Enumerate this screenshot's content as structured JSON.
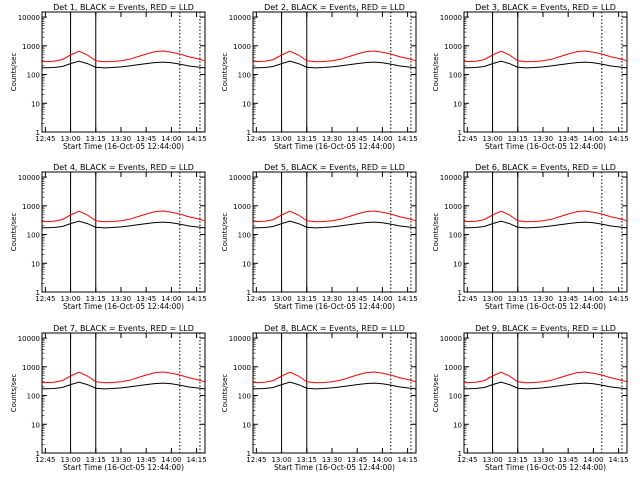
{
  "chart_data": {
    "type": "line",
    "layout": "3x3 grid of panels",
    "y_scale": "log",
    "ylim": [
      1,
      15000
    ],
    "y_ticks": [
      1,
      10,
      100,
      1000,
      10000
    ],
    "y_tick_labels": [
      "1",
      "10",
      "100",
      "1000",
      "10000"
    ],
    "xlim_minutes_after_12_43": [
      0,
      97
    ],
    "x_tick_labels": [
      "12:45",
      "13:00",
      "13:15",
      "13:30",
      "13:45",
      "14:00",
      "14:15"
    ],
    "ylabel": "Counts/sec",
    "xlabel": "Start Time (16-Oct-05 12:44:00)",
    "series_colors": {
      "events": "#000000",
      "lld": "#ff0000"
    },
    "solid_markers": [
      "13:00",
      "13:15"
    ],
    "dotted_markers": [
      "14:05",
      "14:17"
    ],
    "panels": [
      {
        "title": "Det 1, BLACK = Events, RED = LLD"
      },
      {
        "title": "Det 2, BLACK = Events, RED = LLD"
      },
      {
        "title": "Det 3, BLACK = Events, RED = LLD"
      },
      {
        "title": "Det 4, BLACK = Events, RED = LLD"
      },
      {
        "title": "Det 5, BLACK = Events, RED = LLD"
      },
      {
        "title": "Det 6, BLACK = Events, RED = LLD"
      },
      {
        "title": "Det 7, BLACK = Events, RED = LLD"
      },
      {
        "title": "Det 8, BLACK = Events, RED = LLD"
      },
      {
        "title": "Det 9, BLACK = Events, RED = LLD"
      }
    ],
    "series": [
      {
        "key": "lld",
        "x_time": [
          "12:43",
          "12:50",
          "12:55",
          "13:00",
          "13:05",
          "13:10",
          "13:15",
          "13:20",
          "13:25",
          "13:30",
          "13:35",
          "13:40",
          "13:45",
          "13:50",
          "13:55",
          "14:00",
          "14:05",
          "14:10",
          "14:15",
          "14:20"
        ],
        "values": [
          280,
          290,
          330,
          480,
          650,
          480,
          300,
          280,
          285,
          300,
          340,
          420,
          520,
          620,
          660,
          600,
          520,
          420,
          360,
          300
        ]
      },
      {
        "key": "events",
        "x_time": [
          "12:43",
          "12:50",
          "12:55",
          "13:00",
          "13:05",
          "13:10",
          "13:15",
          "13:20",
          "13:25",
          "13:30",
          "13:35",
          "13:40",
          "13:45",
          "13:50",
          "13:55",
          "14:00",
          "14:05",
          "14:10",
          "14:15",
          "14:20"
        ],
        "values": [
          170,
          175,
          190,
          240,
          290,
          240,
          180,
          170,
          175,
          185,
          200,
          220,
          240,
          260,
          270,
          255,
          230,
          200,
          185,
          170
        ]
      }
    ]
  }
}
